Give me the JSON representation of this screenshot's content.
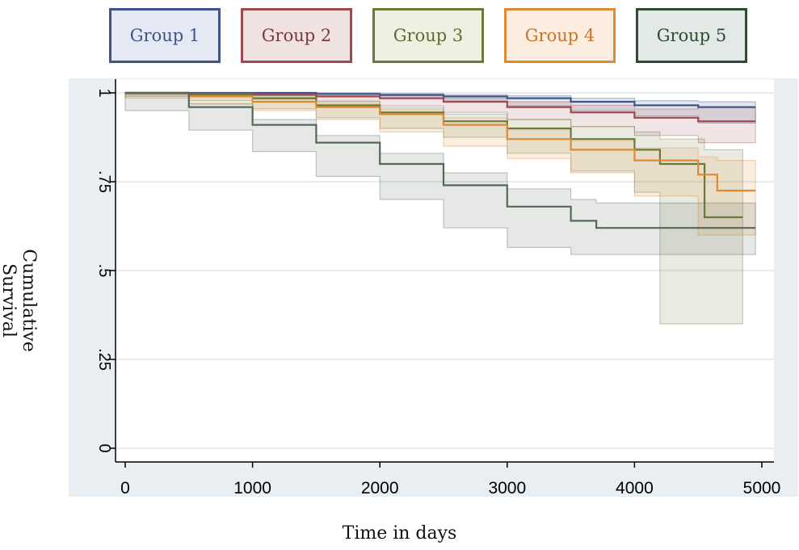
{
  "legend": [
    {
      "label": "Group 1",
      "fill": "#e4e9f3",
      "border": "#3f5585",
      "text": "#3f5585"
    },
    {
      "label": "Group 2",
      "fill": "#f1e2e2",
      "border": "#9e4a4e",
      "text": "#7a3a3d"
    },
    {
      "label": "Group 3",
      "fill": "#eef1e2",
      "border": "#6b7a3a",
      "text": "#5d6b33"
    },
    {
      "label": "Group 4",
      "fill": "#fbede0",
      "border": "#de8a33",
      "text": "#c8742a"
    },
    {
      "label": "Group 5",
      "fill": "#e2e9e6",
      "border": "#2f4a33",
      "text": "#2f4a33"
    }
  ],
  "chart_data": {
    "type": "line",
    "subtype": "kaplan-meier survival curves with confidence bands",
    "xlabel": "Time in days",
    "ylabel": "Cumulative Survival",
    "xlim": [
      0,
      5000
    ],
    "ylim": [
      0,
      1
    ],
    "xticks": [
      "0",
      "1000",
      "2000",
      "3000",
      "4000",
      "5000"
    ],
    "yticks": [
      "0",
      ".25",
      ".5",
      ".75",
      "1"
    ],
    "grid": "horizontal",
    "legend_position": "top",
    "series": [
      {
        "name": "Group 1",
        "color": "#3f5585",
        "x": [
          0,
          500,
          1000,
          1500,
          2000,
          2500,
          3000,
          3500,
          4000,
          4500,
          4950
        ],
        "y": [
          1.0,
          1.0,
          1.0,
          0.997,
          0.994,
          0.99,
          0.985,
          0.975,
          0.965,
          0.96,
          0.96
        ],
        "lower": [
          1.0,
          0.998,
          0.997,
          0.993,
          0.99,
          0.984,
          0.977,
          0.963,
          0.95,
          0.935,
          0.915
        ],
        "upper": [
          1.0,
          1.0,
          1.0,
          1.0,
          0.998,
          0.995,
          0.992,
          0.985,
          0.978,
          0.975,
          0.975
        ]
      },
      {
        "name": "Group 2",
        "color": "#9e4a4e",
        "x": [
          0,
          500,
          1000,
          1500,
          2000,
          2500,
          3000,
          3500,
          4000,
          4500,
          4950
        ],
        "y": [
          1.0,
          0.998,
          0.995,
          0.99,
          0.985,
          0.975,
          0.96,
          0.945,
          0.93,
          0.92,
          0.92
        ],
        "lower": [
          1.0,
          0.995,
          0.99,
          0.983,
          0.977,
          0.963,
          0.945,
          0.925,
          0.905,
          0.88,
          0.86
        ],
        "upper": [
          1.0,
          1.0,
          0.999,
          0.996,
          0.993,
          0.985,
          0.975,
          0.965,
          0.955,
          0.96,
          0.96
        ]
      },
      {
        "name": "Group 3",
        "color": "#6b7a3a",
        "x": [
          0,
          500,
          1000,
          1500,
          2000,
          2500,
          3000,
          3500,
          4000,
          4200,
          4550,
          4850
        ],
        "y": [
          1.0,
          0.995,
          0.985,
          0.965,
          0.945,
          0.92,
          0.9,
          0.87,
          0.84,
          0.8,
          0.65,
          0.65
        ],
        "lower": [
          1.0,
          0.99,
          0.978,
          0.955,
          0.93,
          0.9,
          0.875,
          0.83,
          0.78,
          0.72,
          0.35,
          0.35
        ],
        "upper": [
          1.0,
          0.999,
          0.992,
          0.975,
          0.958,
          0.94,
          0.925,
          0.905,
          0.89,
          0.87,
          0.84,
          0.84
        ]
      },
      {
        "name": "Group 4",
        "color": "#de8a33",
        "x": [
          0,
          500,
          1000,
          1500,
          2000,
          2500,
          3000,
          3500,
          4000,
          4500,
          4650,
          4950
        ],
        "y": [
          1.0,
          0.99,
          0.975,
          0.96,
          0.94,
          0.91,
          0.87,
          0.84,
          0.81,
          0.77,
          0.725,
          0.725
        ],
        "lower": [
          1.0,
          0.985,
          0.968,
          0.95,
          0.925,
          0.89,
          0.85,
          0.815,
          0.775,
          0.71,
          0.6,
          0.6
        ],
        "upper": [
          1.0,
          0.995,
          0.983,
          0.97,
          0.953,
          0.93,
          0.895,
          0.865,
          0.845,
          0.82,
          0.81,
          0.81
        ]
      },
      {
        "name": "Group 5",
        "color": "#55675a",
        "x": [
          0,
          500,
          1000,
          1500,
          2000,
          2500,
          3000,
          3500,
          3700,
          4950
        ],
        "y": [
          1.0,
          0.96,
          0.91,
          0.86,
          0.8,
          0.74,
          0.68,
          0.64,
          0.62,
          0.62
        ],
        "lower": [
          1.0,
          0.95,
          0.895,
          0.835,
          0.765,
          0.7,
          0.62,
          0.565,
          0.545,
          0.545
        ],
        "upper": [
          1.0,
          0.97,
          0.925,
          0.88,
          0.83,
          0.775,
          0.73,
          0.7,
          0.69,
          0.69
        ]
      }
    ]
  }
}
